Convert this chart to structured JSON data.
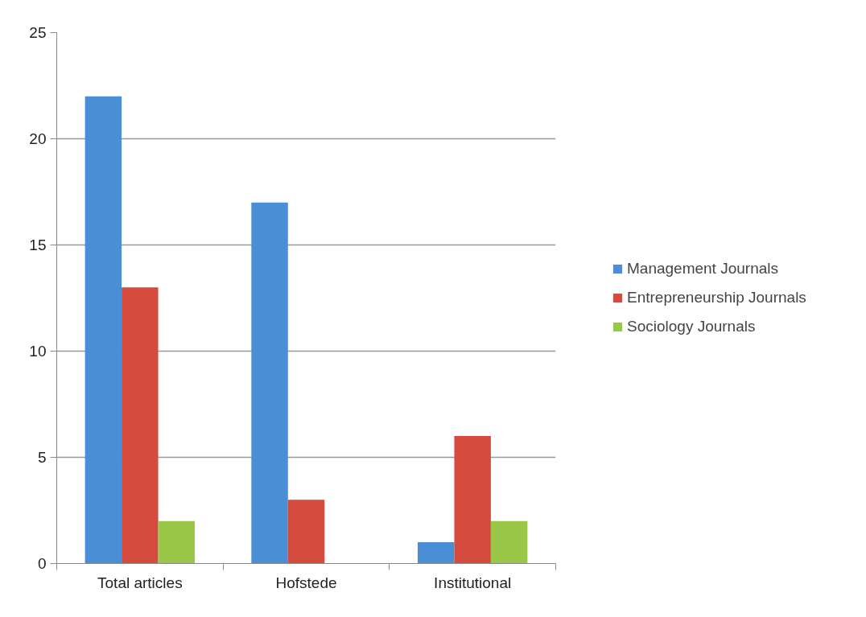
{
  "chart_data": {
    "type": "bar",
    "categories": [
      "Total articles",
      "Hofstede",
      "Institutional"
    ],
    "series": [
      {
        "name": "Management Journals",
        "color": "#4a8fd6",
        "values": [
          22,
          17,
          1
        ]
      },
      {
        "name": "Entrepreneurship Journals",
        "color": "#d54b3e",
        "values": [
          13,
          3,
          6
        ]
      },
      {
        "name": "Sociology Journals",
        "color": "#9bc748",
        "values": [
          2,
          0,
          2
        ]
      }
    ],
    "ylim": [
      0,
      25
    ],
    "yticks": [
      0,
      5,
      10,
      15,
      20,
      25
    ],
    "grid": "y",
    "legend": "right"
  }
}
